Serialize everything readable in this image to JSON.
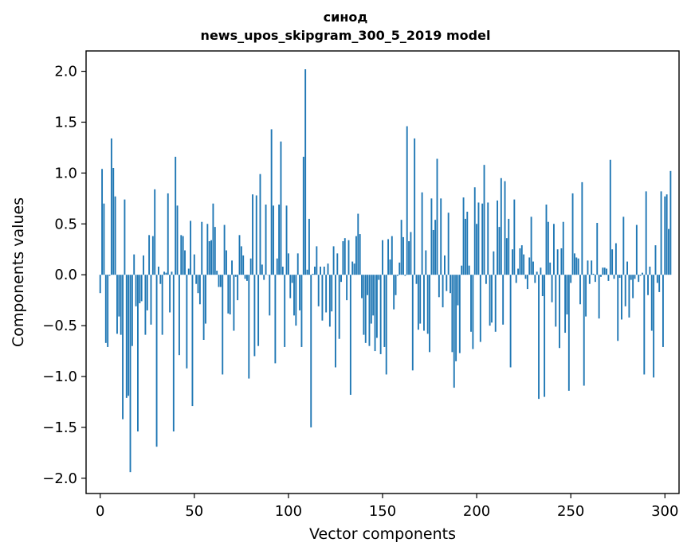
{
  "chart_data": {
    "type": "bar",
    "title": "синод",
    "subtitle": "news_upos_skipgram_300_5_2019 model",
    "xlabel": "Vector components",
    "ylabel": "Components values",
    "xlim": [
      -7.5,
      307.5
    ],
    "ylim": [
      -2.15,
      2.2
    ],
    "xticks": [
      0,
      50,
      100,
      150,
      200,
      250,
      300
    ],
    "xtick_labels": [
      "0",
      "50",
      "100",
      "150",
      "200",
      "250",
      "300"
    ],
    "yticks": [
      -2.0,
      -1.5,
      -1.0,
      -0.5,
      0.0,
      0.5,
      1.0,
      1.5,
      2.0
    ],
    "ytick_labels": [
      "−2.0",
      "−1.5",
      "−1.0",
      "−0.5",
      "0.0",
      "0.5",
      "1.0",
      "1.5",
      "2.0"
    ],
    "grid": false,
    "bar_color": "#1f77b4",
    "values": [
      -0.18,
      1.04,
      0.7,
      -0.67,
      -0.71,
      -0.01,
      1.34,
      1.05,
      0.77,
      -0.58,
      -0.41,
      -0.59,
      -1.42,
      0.74,
      -1.21,
      -1.19,
      -1.94,
      -0.7,
      0.2,
      -0.31,
      -1.54,
      -0.28,
      -0.26,
      0.19,
      -0.59,
      -0.35,
      0.39,
      -0.49,
      0.38,
      0.84,
      -1.69,
      0.08,
      -0.09,
      -0.59,
      0.03,
      0.02,
      0.8,
      -0.37,
      0.03,
      -1.54,
      1.16,
      0.68,
      -0.79,
      0.39,
      0.38,
      0.24,
      -0.92,
      0.06,
      0.53,
      -1.29,
      0.2,
      -0.09,
      -0.18,
      -0.29,
      0.52,
      -0.64,
      -0.48,
      0.5,
      0.33,
      0.34,
      0.7,
      0.47,
      0.04,
      -0.12,
      -0.12,
      -0.98,
      0.49,
      0.24,
      -0.38,
      -0.39,
      0.14,
      -0.55,
      -0.02,
      -0.25,
      0.39,
      0.28,
      0.19,
      -0.04,
      -0.06,
      -1.02,
      0.16,
      0.79,
      -0.8,
      0.78,
      -0.7,
      0.99,
      0.1,
      -0.05,
      0.69,
      0.0,
      -0.4,
      1.43,
      0.68,
      -0.87,
      0.16,
      0.69,
      1.31,
      0.08,
      -0.71,
      0.68,
      0.21,
      -0.23,
      -0.08,
      -0.4,
      -0.5,
      0.21,
      -0.35,
      -0.71,
      1.16,
      2.02,
      0.05,
      0.55,
      -1.5,
      0.01,
      0.08,
      0.28,
      -0.31,
      0.08,
      -0.45,
      0.08,
      -0.37,
      0.11,
      -0.51,
      -0.36,
      0.28,
      -0.91,
      0.21,
      -0.63,
      -0.07,
      0.33,
      0.36,
      -0.25,
      0.34,
      -1.18,
      0.13,
      0.11,
      0.38,
      0.6,
      0.4,
      -0.23,
      -0.59,
      -0.67,
      -0.2,
      -0.7,
      -0.48,
      -0.4,
      -0.75,
      -0.62,
      -0.05,
      -0.78,
      0.34,
      -0.71,
      -0.98,
      0.35,
      0.15,
      0.38,
      -0.34,
      -0.2,
      -0.01,
      0.12,
      0.54,
      0.37,
      -0.01,
      1.46,
      0.33,
      0.42,
      -0.94,
      1.34,
      -0.09,
      -0.54,
      -0.48,
      0.81,
      -0.55,
      0.24,
      -0.58,
      -0.76,
      0.75,
      0.44,
      0.54,
      1.14,
      -0.22,
      0.75,
      -0.32,
      0.19,
      -0.16,
      0.61,
      -0.18,
      -0.76,
      -1.11,
      -0.85,
      -0.3,
      -0.77,
      0.09,
      0.76,
      0.55,
      0.62,
      0.09,
      -0.56,
      -0.73,
      0.86,
      0.5,
      0.71,
      -0.66,
      0.7,
      1.08,
      -0.09,
      0.71,
      -0.5,
      -0.47,
      0.23,
      -0.56,
      0.73,
      0.47,
      0.95,
      -0.49,
      0.92,
      0.36,
      0.55,
      -0.91,
      0.25,
      0.74,
      -0.08,
      0.06,
      0.26,
      0.29,
      0.2,
      -0.04,
      -0.14,
      0.17,
      0.57,
      0.13,
      -0.08,
      0.03,
      -1.22,
      0.07,
      -0.21,
      -1.2,
      0.69,
      0.52,
      0.12,
      -0.27,
      0.5,
      -0.51,
      0.25,
      -0.72,
      0.26,
      0.52,
      -0.57,
      -0.39,
      -1.14,
      -0.08,
      0.8,
      0.21,
      0.17,
      0.16,
      -0.29,
      0.91,
      -1.09,
      -0.41,
      0.14,
      -0.09,
      0.14,
      0.01,
      -0.07,
      0.51,
      -0.43,
      -0.02,
      0.07,
      0.07,
      0.06,
      -0.06,
      1.13,
      0.25,
      -0.04,
      0.31,
      -0.65,
      -0.03,
      -0.44,
      0.57,
      -0.31,
      0.13,
      -0.42,
      -0.05,
      -0.23,
      -0.04,
      0.49,
      -0.07,
      -0.01,
      0.02,
      -0.98,
      0.82,
      -0.2,
      0.08,
      -0.55,
      -1.01,
      0.29,
      -0.08,
      -0.17,
      0.82,
      -0.71,
      0.77,
      0.79,
      0.45,
      1.02
    ]
  }
}
